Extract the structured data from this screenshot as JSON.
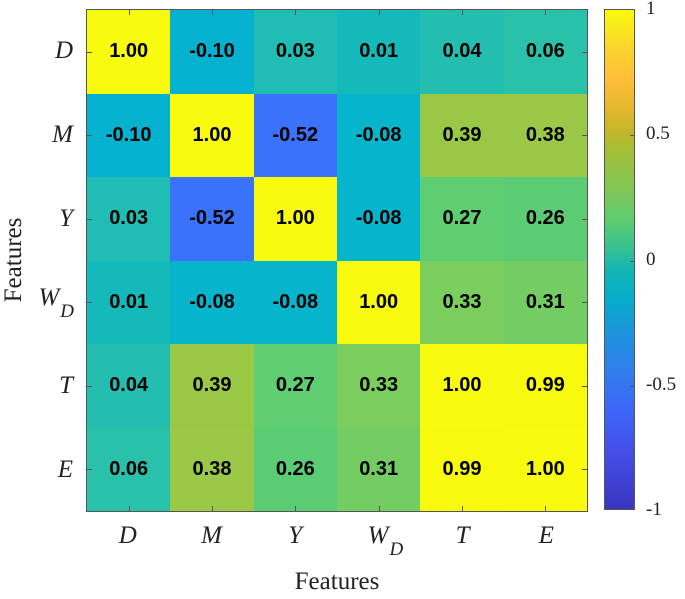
{
  "chart_data": {
    "type": "heatmap",
    "title": "",
    "xlabel": "Features",
    "ylabel": "Features",
    "x_categories": [
      "D",
      "M",
      "Y",
      "W_D",
      "T",
      "E"
    ],
    "y_categories": [
      "D",
      "M",
      "Y",
      "W_D",
      "T",
      "E"
    ],
    "matrix": [
      [
        1.0,
        -0.1,
        0.03,
        0.01,
        0.04,
        0.06
      ],
      [
        -0.1,
        1.0,
        -0.52,
        -0.08,
        0.39,
        0.38
      ],
      [
        0.03,
        -0.52,
        1.0,
        -0.08,
        0.27,
        0.26
      ],
      [
        0.01,
        -0.08,
        -0.08,
        1.0,
        0.33,
        0.31
      ],
      [
        0.04,
        0.39,
        0.27,
        0.33,
        1.0,
        0.99
      ],
      [
        0.06,
        0.38,
        0.26,
        0.31,
        0.99,
        1.0
      ]
    ],
    "value_labels": [
      [
        "1.00",
        "-0.10",
        "0.03",
        "0.01",
        "0.04",
        "0.06"
      ],
      [
        "-0.10",
        "1.00",
        "-0.52",
        "-0.08",
        "0.39",
        "0.38"
      ],
      [
        "0.03",
        "-0.52",
        "1.00",
        "-0.08",
        "0.27",
        "0.26"
      ],
      [
        "0.01",
        "-0.08",
        "-0.08",
        "1.00",
        "0.33",
        "0.31"
      ],
      [
        "0.04",
        "0.39",
        "0.27",
        "0.33",
        "1.00",
        "0.99"
      ],
      [
        "0.06",
        "0.38",
        "0.26",
        "0.31",
        "0.99",
        "1.00"
      ]
    ],
    "colormap": "parula",
    "clim": [
      -1,
      1
    ],
    "colorbar": {
      "ticks": [
        1,
        0.5,
        0,
        -0.5,
        -1
      ],
      "tick_labels": [
        "1",
        "0.5",
        "0",
        "-0.5",
        "-1"
      ],
      "position": "right"
    },
    "grid": false
  },
  "axis_labels": {
    "x": [
      {
        "main": "D",
        "sub": ""
      },
      {
        "main": "M",
        "sub": ""
      },
      {
        "main": "Y",
        "sub": ""
      },
      {
        "main": "W",
        "sub": "D"
      },
      {
        "main": "T",
        "sub": ""
      },
      {
        "main": "E",
        "sub": ""
      }
    ],
    "y": [
      {
        "main": "D",
        "sub": ""
      },
      {
        "main": "M",
        "sub": ""
      },
      {
        "main": "Y",
        "sub": ""
      },
      {
        "main": "W",
        "sub": "D"
      },
      {
        "main": "T",
        "sub": ""
      },
      {
        "main": "E",
        "sub": ""
      }
    ]
  },
  "cell_colors": [
    [
      "#F9FB0E",
      "#04B2CF",
      "#1FBDB3",
      "#13BAB9",
      "#24BEB0",
      "#29C1A9"
    ],
    [
      "#04B2CF",
      "#F9FB0E",
      "#3B72FA",
      "#06B4CB",
      "#99C846",
      "#9BC847"
    ],
    [
      "#1FBDB3",
      "#3B72FA",
      "#F9FB0E",
      "#06B4CB",
      "#5FCD71",
      "#5BCC73"
    ],
    [
      "#13BAB9",
      "#06B4CB",
      "#06B4CB",
      "#F9FB0E",
      "#7BCE5E",
      "#74CD62"
    ],
    [
      "#24BEB0",
      "#99C846",
      "#5FCD71",
      "#7BCE5E",
      "#F9FB0E",
      "#F8FA0D"
    ],
    [
      "#29C1A9",
      "#9BC847",
      "#5BCC73",
      "#74CD62",
      "#F8FA0D",
      "#F9FB0E"
    ]
  ]
}
